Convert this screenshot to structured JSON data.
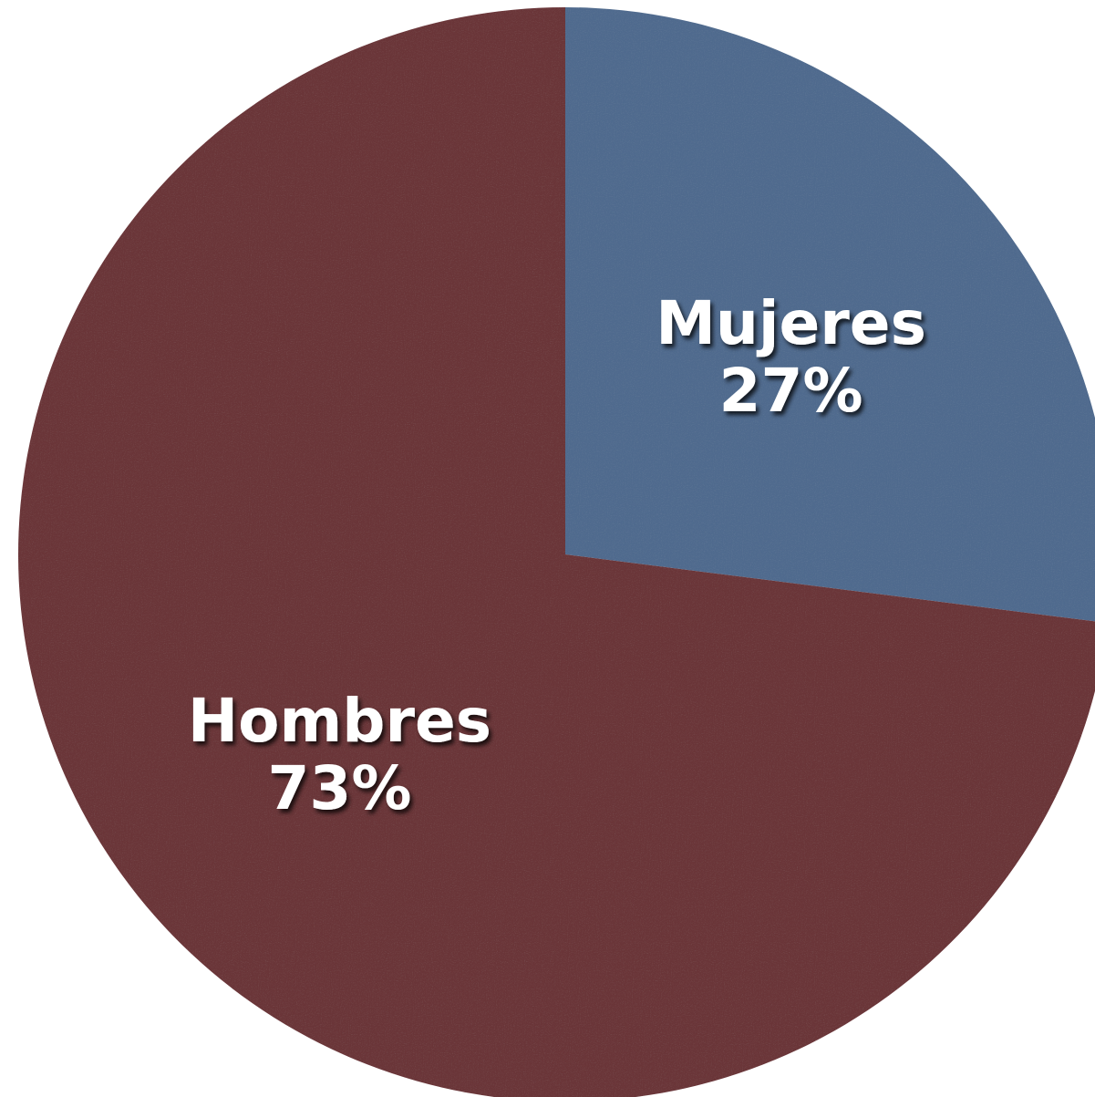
{
  "chart_data": {
    "type": "pie",
    "title": "",
    "start_angle_deg": 0,
    "direction": "clockwise",
    "legend": "none",
    "slices": [
      {
        "name": "Mujeres",
        "value": 27,
        "value_label": "27%",
        "color": "#4f6b8e"
      },
      {
        "name": "Hombres",
        "value": 73,
        "value_label": "73%",
        "color": "#6b3439"
      }
    ]
  }
}
